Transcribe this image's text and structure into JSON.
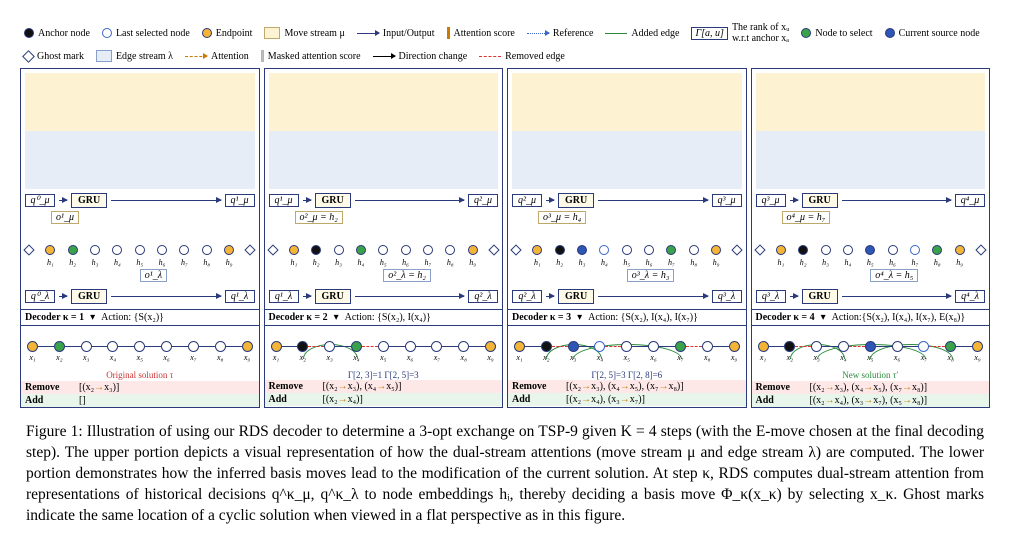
{
  "colors": {
    "anchor": "#111111",
    "last_selected": "#3a67c9",
    "endpoint": "#f4b436",
    "to_select": "#3aa24a",
    "current_source": "#2f55b5",
    "ghost_border": "#2a3a7a",
    "move_stream_bg": "#fdf3d2",
    "edge_stream_bg": "#e6edf7",
    "io_arrow": "#2a3a7a",
    "attention": "#cc7a00",
    "attn_score": "#cc7a00",
    "masked_score": "#b7b7b7",
    "reference": "#3a67c9",
    "direction_change": "#000000",
    "added_edge": "#2a8a3a",
    "removed_edge": "#d33333",
    "panel_border": "#2a3a7a",
    "remove_bg": "#fde7e7",
    "add_bg": "#e7f5ea",
    "orig_caption": "#cc3333",
    "new_caption": "#2a8a3a",
    "gru_bg": "#fffbe8"
  },
  "legend": {
    "anchor": "Anchor node",
    "last_selected": "Last selected node",
    "endpoint": "Endpoint",
    "to_select": "Node to select",
    "current_source": "Current source node",
    "ghost": "Ghost mark",
    "move_stream": "Move stream μ",
    "edge_stream": "Edge stream λ",
    "io": "Input/Output",
    "attention": "Attention",
    "attn_score": "Attention score",
    "masked_score": "Masked attention score",
    "reference": "Reference",
    "direction_change": "Direction change",
    "added_edge": "Added edge",
    "removed_edge": "Removed edge",
    "rank_symbol": "Γ[a, u]",
    "rank_desc_l1": "The rank of xᵤ",
    "rank_desc_l2": "w.r.t anchor xₐ"
  },
  "node_labels": [
    "h₁",
    "h₂",
    "h₃",
    "h₄",
    "h₅",
    "h₆",
    "h₇",
    "h₈",
    "h₉"
  ],
  "route_labels": [
    "x₁",
    "x₂",
    "x₃",
    "x₄",
    "x₅",
    "x₆",
    "x₇",
    "x₈",
    "x₉"
  ],
  "panels": [
    {
      "q_mu_in": "q⁰_μ",
      "q_mu_out": "q¹_μ",
      "o_mu": "o¹_μ",
      "q_l_in": "q⁰_λ",
      "q_l_out": "q¹_λ",
      "o_l": "o¹_λ",
      "gru": "GRU",
      "node_roles": [
        "endpoint",
        "to_select",
        "open",
        "open",
        "open",
        "open",
        "open",
        "open",
        "endpoint"
      ],
      "decoder_label": "Decoder κ = 1",
      "action_label": "Action: {S(x₂)}",
      "route_roles": [
        "endpoint",
        "to_select",
        "open",
        "open",
        "open",
        "open",
        "open",
        "open",
        "endpoint"
      ],
      "removed_links_idx": [],
      "added_curves": [],
      "route_caption": "Original solution τ",
      "route_caption_color": "orig_caption",
      "gamma_notes": [],
      "remove_list": "[(x₂→x₃)]",
      "add_list": "[]"
    },
    {
      "q_mu_in": "q¹_μ",
      "q_mu_out": "q²_μ",
      "o_mu": "o²_μ = h₂",
      "q_l_in": "q¹_λ",
      "q_l_out": "q²_λ",
      "o_l": "o²_λ = h₂",
      "gru": "GRU",
      "node_roles": [
        "endpoint",
        "anchor",
        "open",
        "to_select",
        "open",
        "open",
        "open",
        "open",
        "endpoint"
      ],
      "decoder_label": "Decoder κ = 2",
      "action_label": "Action: {S(x₂), I(x₄)}",
      "route_roles": [
        "endpoint",
        "anchor",
        "open",
        "to_select",
        "open",
        "open",
        "open",
        "open",
        "endpoint"
      ],
      "removed_links_idx": [
        1,
        3
      ],
      "added_curves": [
        {
          "from": 1,
          "to": 3
        }
      ],
      "route_caption": "",
      "route_caption_color": "orig_caption",
      "gamma_notes": [
        "Γ[2, 3]=1   Γ[2, 5]=3"
      ],
      "remove_list": "[(x₂→x₃), (x₄→x₅)]",
      "add_list": "[(x₂→x₄)]"
    },
    {
      "q_mu_in": "q²_μ",
      "q_mu_out": "q³_μ",
      "o_mu": "o³_μ = h₄",
      "q_l_in": "q²_λ",
      "q_l_out": "q³_λ",
      "o_l": "o³_λ = h₃",
      "gru": "GRU",
      "node_roles": [
        "endpoint",
        "anchor",
        "current_source",
        "last_selected",
        "open",
        "open",
        "to_select",
        "open",
        "endpoint"
      ],
      "decoder_label": "Decoder κ = 3",
      "action_label": "Action: {S(x₂), I(x₄), I(x₇)}",
      "route_roles": [
        "endpoint",
        "anchor",
        "current_source",
        "last_selected",
        "open",
        "open",
        "to_select",
        "open",
        "endpoint"
      ],
      "removed_links_idx": [
        1,
        3,
        6
      ],
      "added_curves": [
        {
          "from": 1,
          "to": 3
        },
        {
          "from": 2,
          "to": 6
        }
      ],
      "route_caption": "",
      "route_caption_color": "orig_caption",
      "gamma_notes": [
        "Γ[2, 5]=3",
        "Γ[2, 8]=6"
      ],
      "remove_list": "[(x₂→x₃), (x₄→x₅), (x₇→x₈)]",
      "add_list": "[(x₂→x₄), (x₃→x₇)]"
    },
    {
      "q_mu_in": "q³_μ",
      "q_mu_out": "q⁴_μ",
      "o_mu": "o⁴_μ = h₇",
      "q_l_in": "q³_λ",
      "q_l_out": "q⁴_λ",
      "o_l": "o⁴_λ = h₅",
      "gru": "GRU",
      "node_roles": [
        "endpoint",
        "anchor",
        "open",
        "open",
        "current_source",
        "open",
        "last_selected",
        "to_select",
        "endpoint"
      ],
      "decoder_label": "Decoder κ = 4",
      "action_label": "Action:{S(x₂), I(x₄), I(x₇), E(x₈)}",
      "route_roles": [
        "endpoint",
        "anchor",
        "open",
        "open",
        "current_source",
        "open",
        "last_selected",
        "to_select",
        "endpoint"
      ],
      "removed_links_idx": [
        1,
        3,
        6
      ],
      "added_curves": [
        {
          "from": 1,
          "to": 3
        },
        {
          "from": 2,
          "to": 6
        },
        {
          "from": 4,
          "to": 7
        }
      ],
      "route_caption": "New solution τ′",
      "route_caption_color": "new_caption",
      "gamma_notes": [],
      "remove_list": "[(x₂→x₃), (x₄→x₅), (x₇→x₈)]",
      "add_list": "[(x₂→x₄), (x₃→x₇), (x₅→x₈)]"
    }
  ],
  "remove_label": "Remove",
  "add_label": "Add",
  "caption": "Figure 1: Illustration of using our RDS decoder to determine a 3-opt exchange on TSP-9 given K = 4 steps (with the E-move chosen at the final decoding step). The upper portion depicts a visual representation of how the dual-stream attentions (move stream μ and edge stream λ) are computed. The lower portion demonstrates how the inferred basis moves lead to the modification of the current solution. At step κ, RDS computes dual-stream attention from representations of historical decisions q^κ_μ, q^κ_λ to node embeddings hᵢ, thereby deciding a basis move Φ_κ(x_κ) by selecting x_κ. Ghost marks indicate the same location of a cyclic solution when viewed in a flat perspective as in this figure."
}
